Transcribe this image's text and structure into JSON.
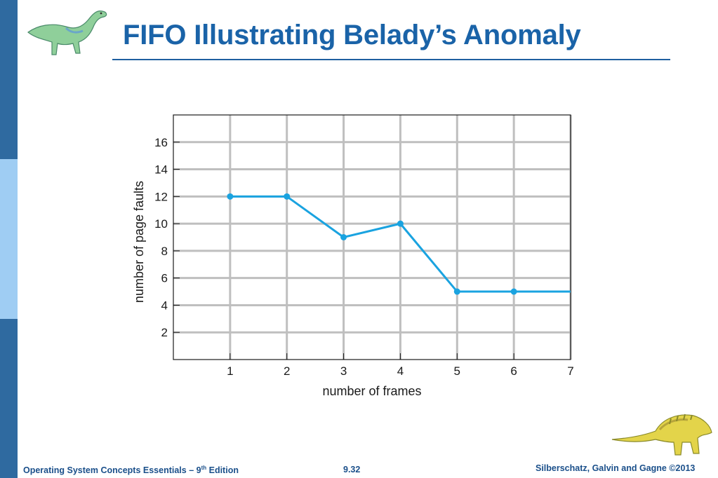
{
  "slide": {
    "title": "FIFO Illustrating Belady’s Anomaly",
    "footer_left_main": "Operating System Concepts Essentials – 9",
    "footer_left_sup": "th",
    "footer_left_tail": " Edition",
    "slide_number": "9.32",
    "footer_right": "Silberschatz, Galvin and Gagne ©2013",
    "top_image": "dinosaur-illustration",
    "bottom_image": "dinosaur-illustration"
  },
  "colors": {
    "title": "#1a63a8",
    "sidebar_dark": "#2f6aa0",
    "sidebar_light": "#9fcdf3",
    "series_line": "#1aa3e0",
    "grid": "#bfbfbf"
  },
  "chart_data": {
    "type": "line",
    "title": "",
    "xlabel": "number of frames",
    "ylabel": "number of page faults",
    "x_ticks": [
      1,
      2,
      3,
      4,
      5,
      6,
      7
    ],
    "y_ticks": [
      2,
      4,
      6,
      8,
      10,
      12,
      14,
      16
    ],
    "xlim": [
      0,
      7
    ],
    "ylim": [
      0,
      18
    ],
    "grid": true,
    "series": [
      {
        "points": [
          [
            1,
            12
          ],
          [
            2,
            12
          ],
          [
            3,
            9
          ],
          [
            4,
            10
          ],
          [
            5,
            5
          ],
          [
            6,
            5
          ],
          [
            7,
            5
          ]
        ]
      }
    ]
  }
}
